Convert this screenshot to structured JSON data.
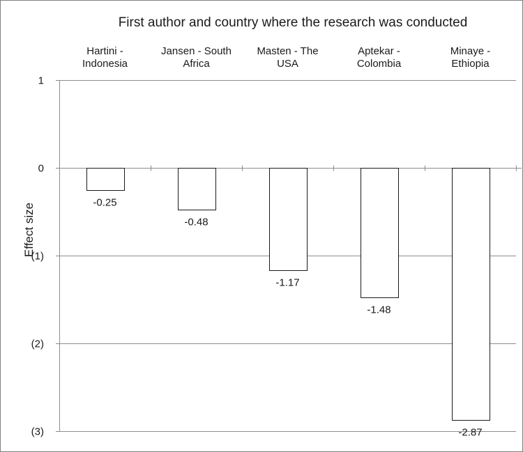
{
  "chart_data": {
    "type": "bar",
    "title": "First author and country where the research was conducted",
    "ylabel": "Effect size",
    "xlabel": "",
    "categories": [
      [
        "Hartini -",
        "Indonesia"
      ],
      [
        "Jansen - South",
        "Africa"
      ],
      [
        "Masten - The",
        "USA"
      ],
      [
        "Aptekar -",
        "Colombia"
      ],
      [
        "Minaye -",
        "Ethiopia"
      ]
    ],
    "values": [
      -0.25,
      -0.48,
      -1.17,
      -1.48,
      -2.87
    ],
    "value_labels": [
      "-0.25",
      "-0.48",
      "-1.17",
      "-1.48",
      "-2.87"
    ],
    "ylim": [
      -3,
      1
    ],
    "y_ticks": [
      1,
      0,
      -1,
      -2,
      -3
    ],
    "y_tick_labels": [
      "1",
      "0",
      "(1)",
      "(2)",
      "(3)"
    ],
    "category_axis_position": "top",
    "grid": true,
    "bar_fill": "#ffffff",
    "bar_stroke": "#1a1a1a"
  }
}
